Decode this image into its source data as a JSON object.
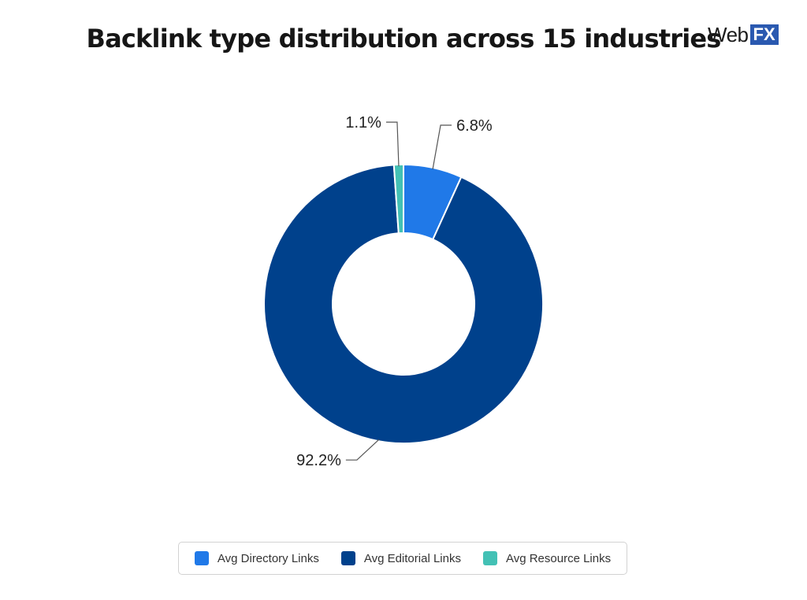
{
  "chart_data": {
    "type": "pie",
    "variant": "donut",
    "title": "Backlink type distribution across 15 industries",
    "categories": [
      "Avg Directory Links",
      "Avg Editorial Links",
      "Avg Resource Links"
    ],
    "values": [
      6.8,
      92.2,
      1.1
    ],
    "labels": [
      "6.8%",
      "92.2%",
      "1.1%"
    ],
    "colors": [
      "#2079e8",
      "#00418c",
      "#43c1b5"
    ],
    "legend_position": "bottom-center"
  },
  "logo": {
    "text": "Web",
    "highlight": "FX",
    "highlight_color": "#2a59b0"
  }
}
